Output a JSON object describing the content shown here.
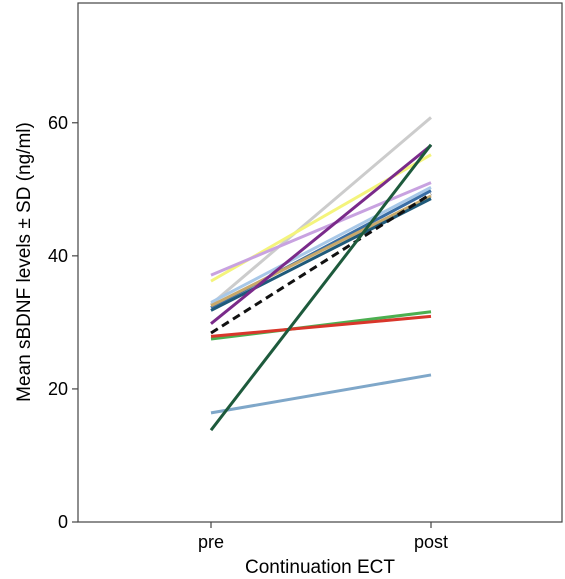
{
  "chart_data": {
    "type": "line",
    "categories": [
      "pre",
      "post"
    ],
    "xlabel": "Continuation ECT",
    "ylabel": "Mean sBDNF levels ± SD (ng/ml)",
    "ylim": [
      0,
      78
    ],
    "yticks": [
      0,
      20,
      40,
      60
    ],
    "grid": false,
    "legend": "none",
    "series": [
      {
        "values": [
          32.7,
          60.8
        ],
        "color": "#cccccc",
        "dashed": false
      },
      {
        "values": [
          36.2,
          55.2
        ],
        "color": "#f4f47c",
        "dashed": false
      },
      {
        "values": [
          37.1,
          51.0
        ],
        "color": "#c8a2e0",
        "dashed": false
      },
      {
        "values": [
          33.0,
          50.3
        ],
        "color": "#a8c8e8",
        "dashed": false
      },
      {
        "values": [
          32.2,
          49.8
        ],
        "color": "#3a6ea5",
        "dashed": false
      },
      {
        "values": [
          32.5,
          49.0
        ],
        "color": "#c8a86a",
        "dashed": false
      },
      {
        "values": [
          31.8,
          48.6
        ],
        "color": "#1f5a7a",
        "dashed": false
      },
      {
        "values": [
          29.8,
          56.6
        ],
        "color": "#7a2a8a",
        "dashed": false
      },
      {
        "values": [
          28.4,
          49.3
        ],
        "color": "#111111",
        "dashed": true
      },
      {
        "values": [
          27.5,
          31.6
        ],
        "color": "#4caf50",
        "dashed": false
      },
      {
        "values": [
          27.9,
          30.9
        ],
        "color": "#d9362b",
        "dashed": false
      },
      {
        "values": [
          16.4,
          22.1
        ],
        "color": "#7fa7c9",
        "dashed": false
      },
      {
        "values": [
          13.8,
          56.7
        ],
        "color": "#1d5a3c",
        "dashed": false
      }
    ]
  }
}
